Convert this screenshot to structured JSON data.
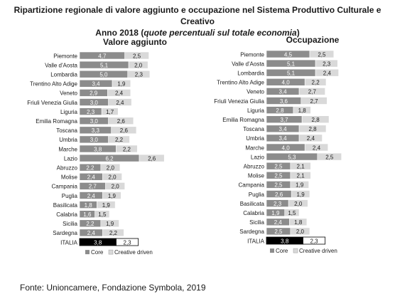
{
  "title_line1": "Ripartizione regionale di valore aggiunto e occupazione nel Sistema Produttivo Culturale e Creativo",
  "title_line2_prefix": "Anno 2018 (",
  "title_line2_em": "quote percentuali sul totale economia",
  "title_line2_suffix": ")",
  "source": "Fonte: Unioncamere, Fondazione Symbola, 2019",
  "colors": {
    "core": "#8c8c8c",
    "creative": "#d9d9d9",
    "italia_core": "#000000",
    "italia_creative": "#ffffff"
  },
  "chart_data": [
    {
      "type": "bar",
      "stacked": true,
      "orientation": "horizontal",
      "title": "Valore aggiunto",
      "categories": [
        "Piemonte",
        "Valle d'Aosta",
        "Lombardia",
        "Trentino Alto Adige",
        "Veneto",
        "Friuli Venezia Giulia",
        "Liguria",
        "Emilia Romagna",
        "Toscana",
        "Umbria",
        "Marche",
        "Lazio",
        "Abruzzo",
        "Molise",
        "Campania",
        "Puglia",
        "Basilicata",
        "Calabria",
        "Sicilia",
        "Sardegna",
        "ITALIA"
      ],
      "series": [
        {
          "name": "Core",
          "values": [
            "4,7",
            "5,1",
            "5,0",
            "3,4",
            "2,9",
            "3,0",
            "2,3",
            "3,0",
            "3,3",
            "3,0",
            "3,8",
            "6,2",
            "2,2",
            "2,4",
            "2,7",
            "2,4",
            "1,8",
            "1,6",
            "2,2",
            "2,4",
            "3,8"
          ]
        },
        {
          "name": "Creative driven",
          "values": [
            "2,5",
            "2,0",
            "2,3",
            "1,9",
            "2,4",
            "2,4",
            "1,7",
            "2,6",
            "2,6",
            "2,2",
            "2,2",
            "2,6",
            "2,0",
            "2,0",
            "2,0",
            "1,9",
            "1,9",
            "1,5",
            "1,9",
            "2,2",
            "2,3"
          ]
        }
      ],
      "legend": "bottom"
    },
    {
      "type": "bar",
      "stacked": true,
      "orientation": "horizontal",
      "title": "Occupazione",
      "categories": [
        "Piemonte",
        "Valle d'Aosta",
        "Lombardia",
        "Trentino Alto Adige",
        "Veneto",
        "Friuli Venezia Giulia",
        "Liguria",
        "Emilia Romagna",
        "Toscana",
        "Umbria",
        "Marche",
        "Lazio",
        "Abruzzo",
        "Molise",
        "Campania",
        "Puglia",
        "Basilicata",
        "Calabria",
        "Sicilia",
        "Sardegna",
        "ITALIA"
      ],
      "series": [
        {
          "name": "Core",
          "values": [
            "4,5",
            "5,1",
            "5,1",
            "4,0",
            "3,4",
            "3,6",
            "2,8",
            "3,7",
            "3,4",
            "3,4",
            "4,0",
            "5,3",
            "2,5",
            "2,5",
            "2,5",
            "2,6",
            "2,3",
            "1,9",
            "2,4",
            "2,5",
            "3,8"
          ]
        },
        {
          "name": "Creative driven",
          "values": [
            "2,5",
            "2,3",
            "2,4",
            "2,2",
            "2,7",
            "2,7",
            "1,8",
            "2,8",
            "2,8",
            "2,4",
            "2,4",
            "2,5",
            "2,1",
            "2,1",
            "1,9",
            "1,9",
            "2,0",
            "1,5",
            "1,8",
            "2,0",
            "2,3"
          ]
        }
      ],
      "legend": "bottom"
    }
  ]
}
